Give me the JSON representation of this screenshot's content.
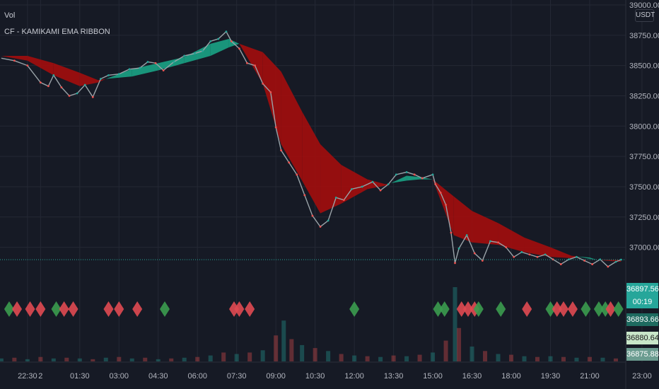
{
  "indicators": {
    "vol_label": "Vol",
    "ribbon_label": "CF - KAMIKAMI EMA RIBBON"
  },
  "currency_button": "USDT",
  "price_tags": {
    "last": {
      "price": "36897.56",
      "countdown": "00:19",
      "color": "#26a69a"
    },
    "t2": {
      "price": "36893.66",
      "color": "#1e6b60"
    },
    "t3": {
      "price": "36880.64",
      "color": "#c8e6c9"
    },
    "t4": {
      "price": "36875.88",
      "color": "#6b9c90"
    }
  },
  "colors": {
    "bull": "#26a69a",
    "bear": "#ef5350",
    "ribbon_bull": "#1aa385",
    "ribbon_bear": "#a30d0d",
    "bull_diamond": "#3b9c4f",
    "bear_diamond": "#e04a52"
  },
  "chart_data": {
    "type": "line",
    "ylim": [
      36735,
      39000
    ],
    "y_ticks": [
      {
        "v": 39000,
        "l": "39000.00"
      },
      {
        "v": 38750,
        "l": "38750.00"
      },
      {
        "v": 38500,
        "l": "38500.00"
      },
      {
        "v": 38250,
        "l": "38250.00"
      },
      {
        "v": 38000,
        "l": "38000.00"
      },
      {
        "v": 37750,
        "l": "37750.00"
      },
      {
        "v": 37500,
        "l": "37500.00"
      },
      {
        "v": 37250,
        "l": "37250.00"
      },
      {
        "v": 37000,
        "l": "37000.00"
      }
    ],
    "x_ticks": [
      {
        "h": -0.5,
        "l": "22:30"
      },
      {
        "h": 0,
        "l": "2"
      },
      {
        "h": 1.5,
        "l": "01:30"
      },
      {
        "h": 3,
        "l": "03:00"
      },
      {
        "h": 4.5,
        "l": "04:30"
      },
      {
        "h": 6,
        "l": "06:00"
      },
      {
        "h": 7.5,
        "l": "07:30"
      },
      {
        "h": 9,
        "l": "09:00"
      },
      {
        "h": 10.5,
        "l": "10:30"
      },
      {
        "h": 12,
        "l": "12:00"
      },
      {
        "h": 13.5,
        "l": "13:30"
      },
      {
        "h": 15,
        "l": "15:00"
      },
      {
        "h": 16.5,
        "l": "16:30"
      },
      {
        "h": 18,
        "l": "18:00"
      },
      {
        "h": 19.5,
        "l": "19:30"
      },
      {
        "h": 21,
        "l": "21:00"
      },
      {
        "h": 23,
        "l": "23:00"
      }
    ],
    "x_range_hours": [
      -1.55,
      22.38
    ],
    "price": [
      [
        -1.5,
        38560
      ],
      [
        -1.0,
        38540
      ],
      [
        -0.5,
        38500
      ],
      [
        0.0,
        38360
      ],
      [
        0.3,
        38330
      ],
      [
        0.5,
        38420
      ],
      [
        0.8,
        38320
      ],
      [
        1.1,
        38250
      ],
      [
        1.4,
        38270
      ],
      [
        1.7,
        38340
      ],
      [
        2.0,
        38240
      ],
      [
        2.3,
        38390
      ],
      [
        2.6,
        38420
      ],
      [
        3.0,
        38430
      ],
      [
        3.4,
        38470
      ],
      [
        3.8,
        38480
      ],
      [
        4.1,
        38530
      ],
      [
        4.4,
        38520
      ],
      [
        4.7,
        38460
      ],
      [
        5.1,
        38530
      ],
      [
        5.5,
        38580
      ],
      [
        5.9,
        38600
      ],
      [
        6.2,
        38620
      ],
      [
        6.5,
        38700
      ],
      [
        6.8,
        38720
      ],
      [
        7.1,
        38780
      ],
      [
        7.3,
        38700
      ],
      [
        7.6,
        38640
      ],
      [
        7.9,
        38520
      ],
      [
        8.2,
        38500
      ],
      [
        8.5,
        38350
      ],
      [
        8.8,
        38280
      ],
      [
        9.0,
        37990
      ],
      [
        9.2,
        37800
      ],
      [
        9.5,
        37700
      ],
      [
        9.8,
        37600
      ],
      [
        10.1,
        37430
      ],
      [
        10.4,
        37260
      ],
      [
        10.7,
        37170
      ],
      [
        11.0,
        37220
      ],
      [
        11.3,
        37410
      ],
      [
        11.6,
        37390
      ],
      [
        11.9,
        37480
      ],
      [
        12.3,
        37500
      ],
      [
        12.7,
        37540
      ],
      [
        13.0,
        37470
      ],
      [
        13.3,
        37520
      ],
      [
        13.6,
        37600
      ],
      [
        14.0,
        37620
      ],
      [
        14.3,
        37600
      ],
      [
        14.6,
        37570
      ],
      [
        15.0,
        37600
      ],
      [
        15.1,
        37520
      ],
      [
        15.3,
        37450
      ],
      [
        15.5,
        37350
      ],
      [
        15.7,
        37120
      ],
      [
        15.85,
        36870
      ],
      [
        16.0,
        36990
      ],
      [
        16.3,
        37100
      ],
      [
        16.6,
        36950
      ],
      [
        16.9,
        36890
      ],
      [
        17.2,
        37050
      ],
      [
        17.5,
        37040
      ],
      [
        17.8,
        37000
      ],
      [
        18.1,
        36920
      ],
      [
        18.4,
        36960
      ],
      [
        18.7,
        36940
      ],
      [
        19.0,
        36920
      ],
      [
        19.3,
        36940
      ],
      [
        19.6,
        36900
      ],
      [
        19.9,
        36860
      ],
      [
        20.2,
        36900
      ],
      [
        20.5,
        36920
      ],
      [
        20.8,
        36890
      ],
      [
        21.1,
        36860
      ],
      [
        21.4,
        36900
      ],
      [
        21.7,
        36840
      ],
      [
        22.0,
        36880
      ],
      [
        22.2,
        36897.56
      ]
    ],
    "ribbon": [
      {
        "h": -1.5,
        "fast": 38580,
        "slow": 38580,
        "trend": "bear"
      },
      {
        "h": -0.5,
        "fast": 38540,
        "slow": 38580,
        "trend": "bear"
      },
      {
        "h": 0.5,
        "fast": 38420,
        "slow": 38520,
        "trend": "bear"
      },
      {
        "h": 1.5,
        "fast": 38330,
        "slow": 38440,
        "trend": "bear"
      },
      {
        "h": 2.2,
        "fast": 38360,
        "slow": 38380,
        "trend": "bear"
      },
      {
        "h": 2.5,
        "fast": 38390,
        "slow": 38390,
        "trend": "bull"
      },
      {
        "h": 3.5,
        "fast": 38470,
        "slow": 38410,
        "trend": "bull"
      },
      {
        "h": 4.5,
        "fast": 38520,
        "slow": 38460,
        "trend": "bull"
      },
      {
        "h": 5.5,
        "fast": 38570,
        "slow": 38520,
        "trend": "bull"
      },
      {
        "h": 6.5,
        "fast": 38680,
        "slow": 38580,
        "trend": "bull"
      },
      {
        "h": 7.2,
        "fast": 38720,
        "slow": 38650,
        "trend": "bull"
      },
      {
        "h": 7.6,
        "fast": 38680,
        "slow": 38680,
        "trend": "bear"
      },
      {
        "h": 8.5,
        "fast": 38350,
        "slow": 38610,
        "trend": "bear"
      },
      {
        "h": 9.2,
        "fast": 37850,
        "slow": 38450,
        "trend": "bear"
      },
      {
        "h": 10.0,
        "fast": 37550,
        "slow": 38120,
        "trend": "bear"
      },
      {
        "h": 10.7,
        "fast": 37280,
        "slow": 37850,
        "trend": "bear"
      },
      {
        "h": 11.5,
        "fast": 37360,
        "slow": 37680,
        "trend": "bear"
      },
      {
        "h": 12.5,
        "fast": 37480,
        "slow": 37560,
        "trend": "bear"
      },
      {
        "h": 13.2,
        "fast": 37510,
        "slow": 37520,
        "trend": "bear"
      },
      {
        "h": 13.4,
        "fast": 37530,
        "slow": 37530,
        "trend": "bull"
      },
      {
        "h": 14.0,
        "fast": 37590,
        "slow": 37550,
        "trend": "bull"
      },
      {
        "h": 14.5,
        "fast": 37580,
        "slow": 37560,
        "trend": "bull"
      },
      {
        "h": 15.0,
        "fast": 37560,
        "slow": 37560,
        "trend": "bear"
      },
      {
        "h": 15.8,
        "fast": 37100,
        "slow": 37420,
        "trend": "bear"
      },
      {
        "h": 16.5,
        "fast": 37040,
        "slow": 37300,
        "trend": "bear"
      },
      {
        "h": 17.5,
        "fast": 37020,
        "slow": 37200,
        "trend": "bear"
      },
      {
        "h": 18.5,
        "fast": 36960,
        "slow": 37080,
        "trend": "bear"
      },
      {
        "h": 19.5,
        "fast": 36920,
        "slow": 37000,
        "trend": "bear"
      },
      {
        "h": 20.3,
        "fast": 36910,
        "slow": 36930,
        "trend": "bear"
      },
      {
        "h": 20.5,
        "fast": 36925,
        "slow": 36925,
        "trend": "bull"
      },
      {
        "h": 21.0,
        "fast": 36915,
        "slow": 36905,
        "trend": "bull"
      },
      {
        "h": 21.3,
        "fast": 36895,
        "slow": 36895,
        "trend": "bear"
      },
      {
        "h": 22.2,
        "fast": 36880,
        "slow": 36895,
        "trend": "bear"
      }
    ],
    "signals": [
      {
        "h": -1.2,
        "type": "bull"
      },
      {
        "h": -0.9,
        "type": "bear"
      },
      {
        "h": -0.4,
        "type": "bear"
      },
      {
        "h": 0.0,
        "type": "bear"
      },
      {
        "h": 0.6,
        "type": "bull"
      },
      {
        "h": 0.9,
        "type": "bear"
      },
      {
        "h": 1.25,
        "type": "bear"
      },
      {
        "h": 2.6,
        "type": "bear"
      },
      {
        "h": 3.0,
        "type": "bear"
      },
      {
        "h": 3.7,
        "type": "bear"
      },
      {
        "h": 4.75,
        "type": "bull"
      },
      {
        "h": 7.4,
        "type": "bear"
      },
      {
        "h": 7.6,
        "type": "bear"
      },
      {
        "h": 8.0,
        "type": "bear"
      },
      {
        "h": 12.0,
        "type": "bull"
      },
      {
        "h": 15.2,
        "type": "bull"
      },
      {
        "h": 15.45,
        "type": "bull"
      },
      {
        "h": 16.1,
        "type": "bear"
      },
      {
        "h": 16.35,
        "type": "bear"
      },
      {
        "h": 16.6,
        "type": "bear"
      },
      {
        "h": 16.75,
        "type": "bull"
      },
      {
        "h": 17.6,
        "type": "bull"
      },
      {
        "h": 18.6,
        "type": "bear"
      },
      {
        "h": 19.5,
        "type": "bull"
      },
      {
        "h": 19.75,
        "type": "bear"
      },
      {
        "h": 20.0,
        "type": "bear"
      },
      {
        "h": 20.35,
        "type": "bear"
      },
      {
        "h": 20.85,
        "type": "bull"
      },
      {
        "h": 21.35,
        "type": "bull"
      },
      {
        "h": 21.6,
        "type": "bull"
      },
      {
        "h": 21.8,
        "type": "bear"
      },
      {
        "h": 22.1,
        "type": "bull"
      }
    ],
    "volume": [
      [
        -1.5,
        0.04
      ],
      [
        -1.0,
        0.05
      ],
      [
        -0.5,
        0.03
      ],
      [
        0.0,
        0.06
      ],
      [
        0.5,
        0.04
      ],
      [
        1.0,
        0.05
      ],
      [
        1.5,
        0.04
      ],
      [
        2.0,
        0.03
      ],
      [
        2.5,
        0.05
      ],
      [
        3.0,
        0.06
      ],
      [
        3.5,
        0.04
      ],
      [
        4.0,
        0.05
      ],
      [
        4.5,
        0.03
      ],
      [
        5.0,
        0.04
      ],
      [
        5.5,
        0.05
      ],
      [
        6.0,
        0.06
      ],
      [
        6.5,
        0.08
      ],
      [
        7.0,
        0.12
      ],
      [
        7.5,
        0.1
      ],
      [
        8.0,
        0.12
      ],
      [
        8.5,
        0.15
      ],
      [
        9.0,
        0.35
      ],
      [
        9.3,
        0.55
      ],
      [
        9.6,
        0.3
      ],
      [
        10.0,
        0.22
      ],
      [
        10.5,
        0.18
      ],
      [
        11.0,
        0.14
      ],
      [
        11.5,
        0.1
      ],
      [
        12.0,
        0.08
      ],
      [
        12.5,
        0.07
      ],
      [
        13.0,
        0.06
      ],
      [
        13.5,
        0.08
      ],
      [
        14.0,
        0.07
      ],
      [
        14.5,
        0.09
      ],
      [
        15.0,
        0.12
      ],
      [
        15.5,
        0.28
      ],
      [
        15.85,
        1.0
      ],
      [
        16.0,
        0.45
      ],
      [
        16.5,
        0.2
      ],
      [
        17.0,
        0.14
      ],
      [
        17.5,
        0.1
      ],
      [
        18.0,
        0.09
      ],
      [
        18.5,
        0.07
      ],
      [
        19.0,
        0.06
      ],
      [
        19.5,
        0.07
      ],
      [
        20.0,
        0.06
      ],
      [
        20.5,
        0.05
      ],
      [
        21.0,
        0.06
      ],
      [
        21.5,
        0.05
      ],
      [
        22.0,
        0.04
      ]
    ]
  }
}
